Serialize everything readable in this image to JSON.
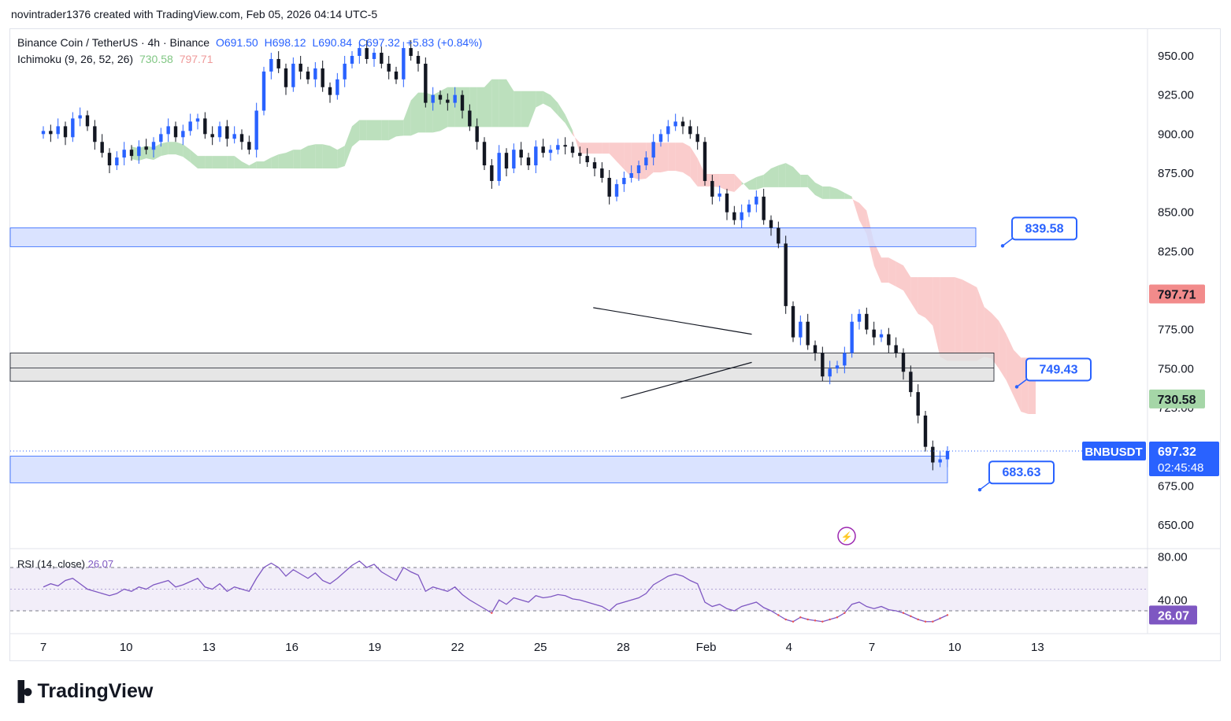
{
  "caption": "novintrader1376 created with TradingView.com, Feb 05, 2026 04:14 UTC-5",
  "legend": {
    "symbol": "Binance Coin / TetherUS · 4h · Binance",
    "open": "O691.50",
    "high": "H698.12",
    "low": "L690.84",
    "close": "C697.32",
    "change": "+5.83 (+0.84%)",
    "indicator": "Ichimoku (9, 26, 52, 26)",
    "ind_val1": "730.58",
    "ind_val2": "797.71"
  },
  "rsi_legend": {
    "name": "RSI (14, close)",
    "value": "26.07"
  },
  "logo": "TradingView",
  "colors": {
    "bull": "#2962ff",
    "bear": "#131722",
    "cloud_green": "#a5d6a7",
    "cloud_red": "#f8bbbb",
    "rsi_line": "#7e57c2",
    "zone_blue": "#d1dcff",
    "zone_gray": "#e0e0e0",
    "label_blue": "#2962ff",
    "label_red": "#f28b8b",
    "label_green": "#a5d6a7",
    "rsi_tag": "#7e57c2"
  },
  "chart_data": {
    "type": "candlestick",
    "title": "Binance Coin / TetherUS · 4h · Binance",
    "price_axis": {
      "min": 640,
      "max": 960,
      "ticks": [
        "950.00",
        "925.00",
        "900.00",
        "875.00",
        "850.00",
        "825.00",
        "775.00",
        "750.00",
        "725.00",
        "675.00",
        "650.00"
      ],
      "tick_values": [
        950,
        925,
        900,
        875,
        850,
        825,
        775,
        750,
        725,
        675,
        650
      ]
    },
    "time_axis": {
      "labels": [
        "7",
        "10",
        "13",
        "16",
        "19",
        "22",
        "25",
        "28",
        "Feb",
        "4",
        "7",
        "10",
        "13"
      ],
      "label_index": [
        0,
        6,
        12,
        18,
        24,
        30,
        36,
        42,
        48,
        54,
        60,
        66,
        72
      ]
    },
    "price_tags": [
      {
        "text": "797.71",
        "value": 797.71,
        "kind": "red"
      },
      {
        "text": "730.58",
        "value": 730.58,
        "kind": "green"
      },
      {
        "text": "BNBUSDT",
        "value": 697.32,
        "kind": "symbol"
      },
      {
        "text": "697.32",
        "value": 697.32,
        "kind": "price"
      },
      {
        "text": "02:45:48",
        "value": 697.32,
        "kind": "timer"
      }
    ],
    "annotations": [
      {
        "text": "839.58",
        "value": 839.58
      },
      {
        "text": "749.43",
        "value": 749.43
      },
      {
        "text": "683.63",
        "value": 683.63
      }
    ],
    "zones": [
      {
        "from": 828,
        "to": 840,
        "kind": "blue"
      },
      {
        "from": 742,
        "to": 760,
        "kind": "gray",
        "mid": 750.5
      },
      {
        "from": 677,
        "to": 694,
        "kind": "blue"
      }
    ],
    "triangle": {
      "upper": [
        [
          51.5,
          789
        ],
        [
          63,
          772
        ]
      ],
      "lower": [
        [
          53.5,
          731
        ],
        [
          63,
          754
        ]
      ]
    },
    "closes": [
      902,
      900,
      905,
      898,
      910,
      912,
      905,
      895,
      888,
      880,
      885,
      890,
      886,
      892,
      890,
      895,
      900,
      905,
      898,
      902,
      908,
      910,
      900,
      898,
      905,
      897,
      900,
      895,
      890,
      915,
      940,
      948,
      942,
      930,
      945,
      940,
      935,
      942,
      930,
      925,
      935,
      945,
      950,
      955,
      948,
      952,
      945,
      940,
      935,
      955,
      950,
      945,
      920,
      925,
      922,
      920,
      925,
      915,
      905,
      895,
      880,
      870,
      888,
      878,
      890,
      885,
      880,
      892,
      888,
      890,
      893,
      892,
      888,
      886,
      882,
      878,
      872,
      860,
      868,
      872,
      875,
      880,
      885,
      895,
      900,
      905,
      908,
      905,
      900,
      895,
      870,
      860,
      862,
      850,
      845,
      850,
      855,
      860,
      845,
      840,
      830,
      790,
      770,
      780,
      765,
      760,
      745,
      750,
      752,
      760,
      780,
      785,
      775,
      770,
      772,
      765,
      760,
      748,
      735,
      720,
      700,
      690,
      692,
      697.32
    ],
    "rsi": {
      "min": 0,
      "max": 100,
      "upper": 70,
      "lower": 30,
      "ticks": [
        "80.00",
        "40.00"
      ],
      "tick_values": [
        80,
        40
      ],
      "tag": "26.07",
      "tag_value": 26.07,
      "values": [
        52,
        55,
        53,
        58,
        60,
        55,
        50,
        48,
        46,
        44,
        46,
        50,
        48,
        52,
        50,
        54,
        56,
        58,
        52,
        54,
        57,
        60,
        52,
        50,
        55,
        48,
        52,
        50,
        48,
        60,
        70,
        74,
        70,
        62,
        68,
        64,
        60,
        65,
        58,
        55,
        60,
        66,
        72,
        76,
        70,
        73,
        66,
        62,
        58,
        70,
        66,
        63,
        48,
        52,
        50,
        48,
        52,
        45,
        40,
        36,
        32,
        28,
        40,
        36,
        42,
        40,
        38,
        44,
        42,
        43,
        45,
        44,
        41,
        40,
        38,
        36,
        34,
        30,
        36,
        38,
        40,
        42,
        46,
        54,
        58,
        62,
        64,
        62,
        58,
        55,
        38,
        34,
        36,
        32,
        30,
        34,
        36,
        38,
        33,
        30,
        26,
        22,
        20,
        24,
        22,
        21,
        20,
        22,
        24,
        28,
        36,
        38,
        34,
        32,
        34,
        31,
        30,
        28,
        25,
        22,
        20,
        20,
        23,
        26.07
      ]
    }
  }
}
